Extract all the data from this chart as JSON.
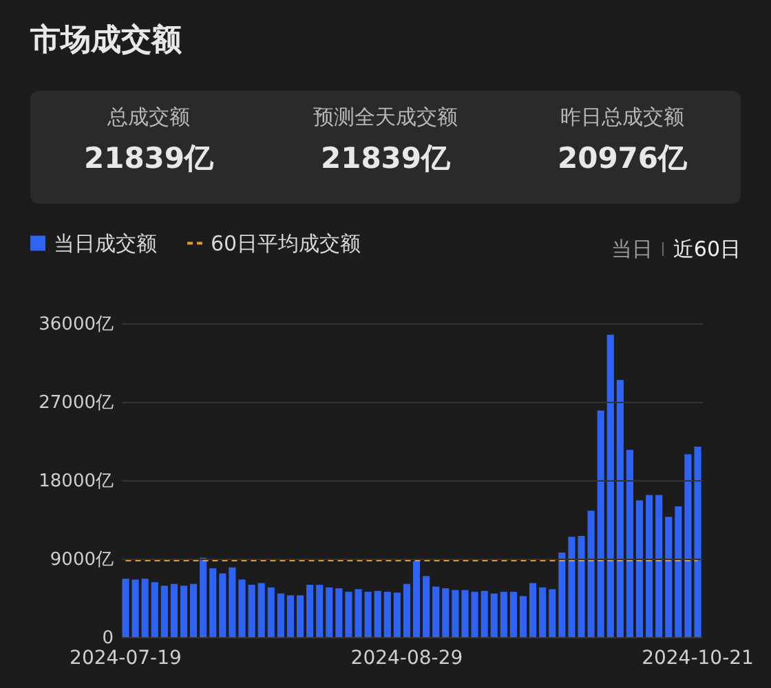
{
  "chart_data": {
    "type": "bar",
    "title": "市场成交额",
    "annotations": [
      "总成交额",
      "21839亿",
      "预测全天成交额",
      "21839亿",
      "昨日总成交额",
      "20976亿",
      "当日",
      "近60日"
    ],
    "categories": [
      "2024-07-19",
      null,
      null,
      null,
      null,
      null,
      null,
      null,
      null,
      null,
      null,
      null,
      null,
      null,
      null,
      null,
      null,
      null,
      null,
      null,
      null,
      null,
      null,
      null,
      null,
      null,
      null,
      null,
      null,
      "2024-08-29",
      null,
      null,
      null,
      null,
      null,
      null,
      null,
      null,
      null,
      null,
      null,
      null,
      null,
      null,
      null,
      null,
      null,
      null,
      null,
      null,
      null,
      null,
      null,
      null,
      null,
      null,
      null,
      null,
      null,
      "2024-10-21"
    ],
    "series": [
      {
        "name": "当日成交额",
        "color": "#2f63f4",
        "values": [
          6700,
          6600,
          6700,
          6300,
          5900,
          6100,
          5900,
          6100,
          9100,
          7900,
          7300,
          8000,
          6600,
          6000,
          6200,
          5700,
          5000,
          4800,
          4800,
          6000,
          6000,
          5700,
          5600,
          5200,
          5500,
          5200,
          5300,
          5200,
          5100,
          6100,
          8700,
          7000,
          5800,
          5600,
          5400,
          5400,
          5200,
          5300,
          5000,
          5200,
          5200,
          4700,
          6200,
          5700,
          5500,
          9700,
          11500,
          11600,
          14500,
          26000,
          34700,
          29500,
          21500,
          15700,
          16300,
          16300,
          13800,
          15000,
          20976,
          21839
        ]
      },
      {
        "name": "60日平均成交额",
        "type": "line",
        "color": "#e39a2d",
        "line_style": "dashed",
        "values": [
          8800,
          8800,
          8800,
          8800,
          8800,
          8800,
          8800,
          8800,
          8800,
          8800,
          8800,
          8800,
          8800,
          8800,
          8800,
          8800,
          8800,
          8800,
          8800,
          8800,
          8800,
          8800,
          8800,
          8800,
          8800,
          8800,
          8800,
          8800,
          8800,
          8800,
          8800,
          8800,
          8800,
          8800,
          8800,
          8800,
          8800,
          8800,
          8800,
          8800,
          8800,
          8800,
          8800,
          8800,
          8800,
          8800,
          8800,
          8800,
          8800,
          8800,
          8800,
          8800,
          8800,
          8800,
          8800,
          8800,
          8800,
          8800,
          8800,
          8800
        ]
      }
    ],
    "ylim": [
      0,
      36000
    ],
    "yticks": [
      0,
      {
        "value": 9000,
        "label": "9000亿"
      },
      {
        "value": 18000,
        "label": "18000亿"
      },
      {
        "value": 27000,
        "label": "27000亿"
      },
      {
        "value": 36000,
        "label": "36000亿"
      }
    ],
    "grid": "y",
    "legend": "top left"
  }
}
